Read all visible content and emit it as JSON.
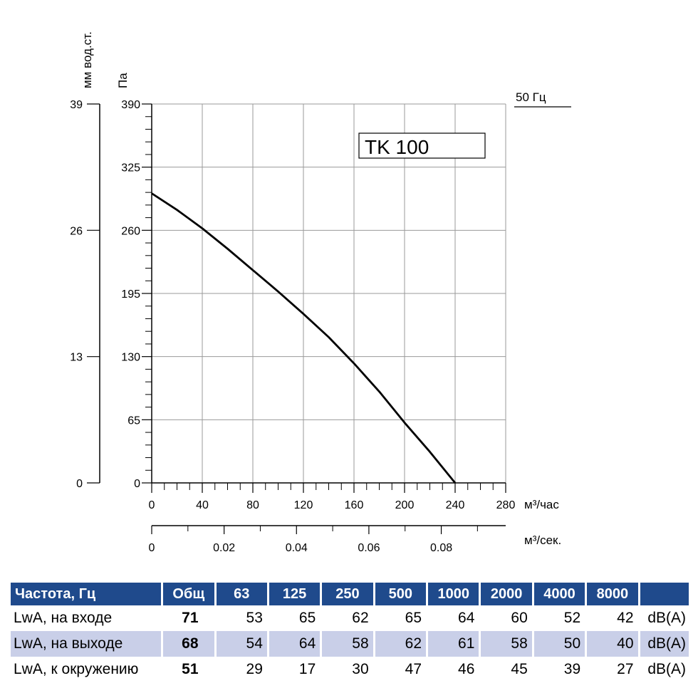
{
  "chart_data": {
    "type": "line",
    "model_label": "TK 100",
    "frequency_label": "50 Гц",
    "series": [
      {
        "name": "TK 100",
        "x": [
          0,
          20,
          40,
          60,
          80,
          100,
          120,
          140,
          160,
          180,
          200,
          220,
          240
        ],
        "y": [
          298,
          281,
          262,
          241,
          219,
          197,
          174,
          150,
          123,
          94,
          62,
          32,
          0
        ]
      }
    ],
    "x_axis": {
      "label": "м³/час",
      "range": [
        0,
        280
      ],
      "ticks": [
        "0",
        "40",
        "80",
        "120",
        "160",
        "200",
        "240",
        "280"
      ]
    },
    "x2_axis": {
      "label": "м³/сек.",
      "range": [
        0,
        0.0978
      ],
      "ticks": [
        "0",
        "0.02",
        "0.04",
        "0.06",
        "0.08"
      ]
    },
    "y_axis": {
      "label": "Па",
      "range": [
        0,
        390
      ],
      "ticks": [
        "0",
        "65",
        "130",
        "195",
        "260",
        "325",
        "390"
      ]
    },
    "y2_axis": {
      "label": "мм вод.ст.",
      "range": [
        0,
        39
      ],
      "ticks": [
        "0",
        "13",
        "26",
        "39"
      ]
    },
    "grid": true
  },
  "table": {
    "headers": [
      "Частота, Гц",
      "Общ",
      "63",
      "125",
      "250",
      "500",
      "1000",
      "2000",
      "4000",
      "8000",
      ""
    ],
    "rows": [
      {
        "label": "LwA, на входе",
        "total": "71",
        "values": [
          "53",
          "65",
          "62",
          "65",
          "64",
          "60",
          "52",
          "42"
        ],
        "unit": "dB(A)"
      },
      {
        "label": "LwA, на выходе",
        "total": "68",
        "values": [
          "54",
          "64",
          "58",
          "62",
          "61",
          "58",
          "50",
          "40"
        ],
        "unit": "dB(A)"
      },
      {
        "label": "LwA, к окружению",
        "total": "51",
        "values": [
          "29",
          "17",
          "30",
          "47",
          "46",
          "45",
          "39",
          "27"
        ],
        "unit": "dB(A)"
      }
    ]
  },
  "colors": {
    "header_bg": "#1f4a8c",
    "row_shade": "#c9cfe8",
    "grid": "#9a9a9a"
  }
}
